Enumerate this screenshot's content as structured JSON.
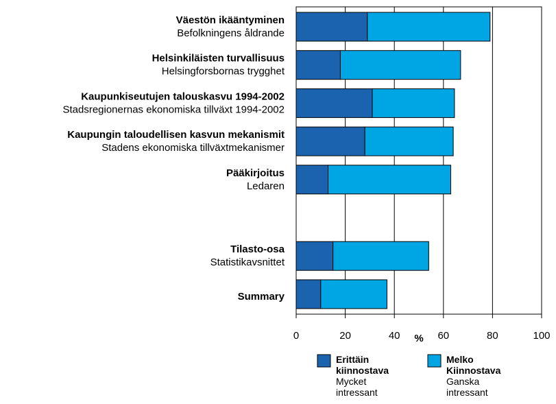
{
  "chart_data": {
    "type": "stacked_bar_horizontal",
    "categories": [
      "Väestön ikääntyminen",
      "Helsinkiläisten turvallisuus",
      "Kaupunkiseutujen talouskasvu 1994-2002",
      "Kaupungin taloudellisen kasvun mekanismit",
      "Pääkirjoitus",
      null,
      "Tilasto-osa",
      "Summary"
    ],
    "categories_sv": [
      "Befolkningens åldrande",
      "Helsingforsbornas trygghet",
      "Stadsregionernas ekonomiska tillväxt 1994-2002",
      "Stadens ekonomiska tillväxtmekanismer",
      "Ledaren",
      null,
      "Statistikavsnittet",
      null
    ],
    "series": [
      {
        "name": "Erittäin kiinnostava",
        "name_sv": "Mycket intressant",
        "color": "#1b63ae",
        "values": [
          29,
          18,
          31,
          28,
          13,
          null,
          15,
          10
        ]
      },
      {
        "name": "Melko Kiinnostava",
        "name_sv": "Ganska intressant",
        "color": "#00a5e4",
        "values": [
          50,
          49,
          33.5,
          36,
          50,
          null,
          39,
          27
        ]
      }
    ],
    "xlabel": "%",
    "xlim": [
      0,
      100
    ],
    "xticks": [
      0,
      20,
      40,
      60,
      80,
      100
    ],
    "grid": true
  }
}
